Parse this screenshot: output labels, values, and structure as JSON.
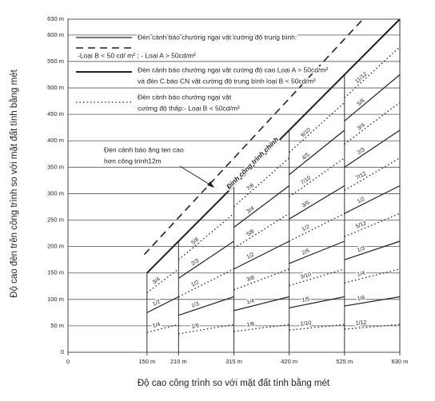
{
  "chart_data": {
    "type": "line",
    "xlabel": "Độ cao công trình so với mặt đất tính bằng mét",
    "ylabel": "Độ cao đèn trên công trình so với mặt đất tính bằng mét",
    "xlim": [
      0,
      630
    ],
    "ylim": [
      0,
      630
    ],
    "xticks": [
      0,
      {
        "value": 150,
        "label": "150 m"
      },
      {
        "value": 210,
        "label": "210 m"
      },
      {
        "value": 315,
        "label": "315 m"
      },
      {
        "value": 420,
        "label": "420 m"
      },
      {
        "value": 525,
        "label": "525 m"
      },
      {
        "value": 630,
        "label": "630 m"
      }
    ],
    "yticks": [
      0,
      {
        "value": 50,
        "label": "50 m"
      },
      {
        "value": 100,
        "label": "100 m"
      },
      {
        "value": 150,
        "label": "150 m"
      },
      {
        "value": 200,
        "label": "200 m"
      },
      {
        "value": 250,
        "label": "250 m"
      },
      {
        "value": 300,
        "label": "300 m"
      },
      {
        "value": 350,
        "label": "350 m"
      },
      {
        "value": 400,
        "label": "400 m"
      },
      {
        "value": 450,
        "label": "450 m"
      },
      {
        "value": 500,
        "label": "500 m"
      },
      {
        "value": 550,
        "label": "550 m"
      },
      {
        "value": 600,
        "label": "600 m"
      },
      {
        "value": 630,
        "label": "630 m"
      }
    ],
    "grid": true,
    "series": [
      {
        "name": "Đỉnh công trình chính",
        "style": "heavy",
        "color": "#222222",
        "x": [
          150,
          630
        ],
        "values": [
          150,
          630
        ]
      },
      {
        "style": "dashed",
        "color": "#222222",
        "x": [
          145,
          560
        ],
        "values": [
          185,
          630
        ]
      }
    ],
    "columns": [
      {
        "x": [
          150,
          210
        ],
        "levels": [
          "1/4",
          "1/2",
          "3/4"
        ]
      },
      {
        "x": [
          210,
          315
        ],
        "levels": [
          "1/6",
          "1/3",
          "1/2",
          "2/3",
          "5/6"
        ]
      },
      {
        "x": [
          315,
          420
        ],
        "levels": [
          "1/8",
          "1/4",
          "3/8",
          "1/2",
          "5/8",
          "3/4",
          "7/8"
        ]
      },
      {
        "x": [
          420,
          525
        ],
        "levels": [
          "1/10",
          "1/5",
          "3/10",
          "2/5",
          "1/2",
          "3/5",
          "7/10",
          "4/5",
          "9/10"
        ]
      },
      {
        "x": [
          525,
          630
        ],
        "levels": [
          "1/12",
          "1/6",
          "1/4",
          "1/3",
          "5/12",
          "1/2",
          "7/12",
          "2/3",
          "3/4",
          "5/6",
          "11/12"
        ]
      }
    ],
    "legend": [
      {
        "style": "solid",
        "text": [
          "Đèn cảnh báo chướng ngại vật cường độ trung bình:"
        ]
      },
      {
        "style": "dashed",
        "text": [
          "-Loại B  < 50 cd/ m² ;     - Loại A  > 50cd/m²"
        ]
      },
      {
        "style": "heavy",
        "text": [
          "Đèn cảnh báo chướng ngại vật cường độ  cao Loại A > 50cd/m²",
          "và đèn C.báo CN vật cường độ  trung bình loại B < 50cd/m²"
        ]
      },
      {
        "style": "dotted",
        "text": [
          "Đèn cảnh báo chướng ngại vật",
          "cường độ  thấp:- Loại B < 50cd/m²"
        ]
      }
    ],
    "antenna_note": [
      "Đèn cảnh báo ăng ten cao",
      "hơn công trình12m"
    ]
  }
}
